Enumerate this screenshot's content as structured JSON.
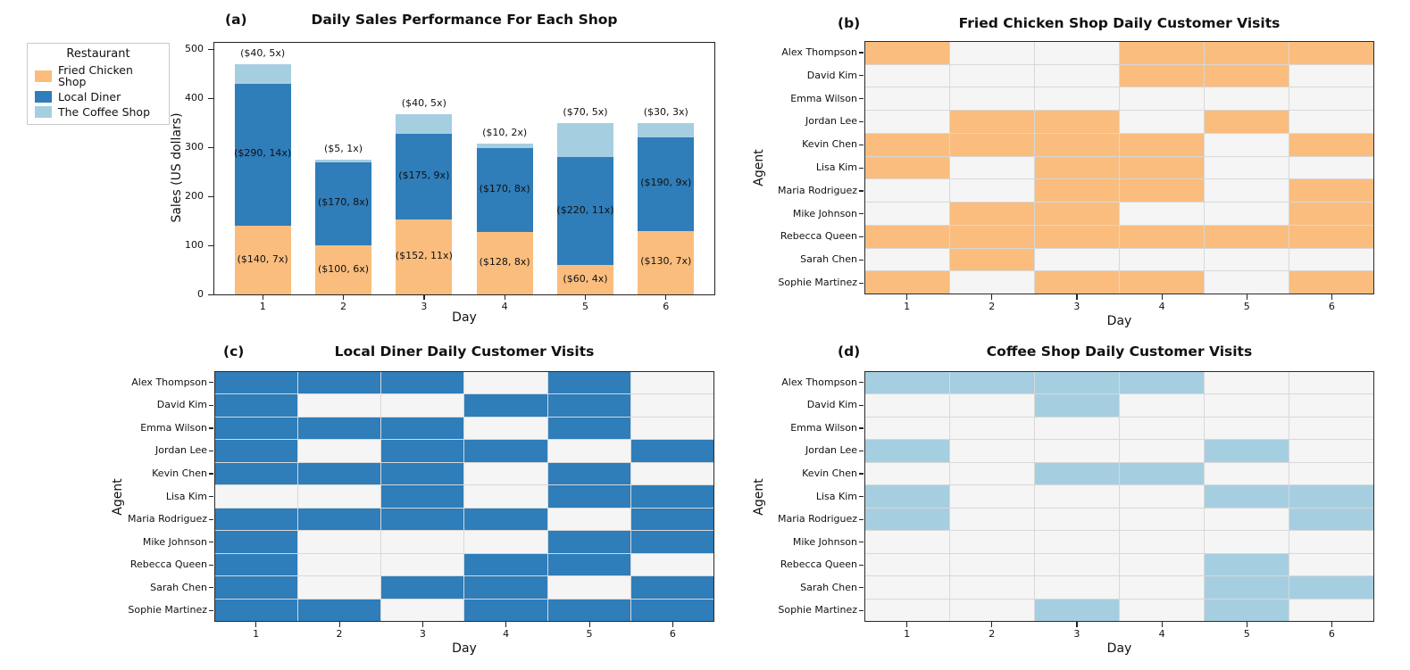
{
  "colors": {
    "fried": "#FABD7E",
    "diner": "#2F7DB9",
    "coffee": "#A6CEE1",
    "cell_off": "#F5F5F5",
    "grid_line": "#D8D8D8",
    "spine": "#222222"
  },
  "chart_data": [
    {
      "id": "a",
      "type": "bar",
      "stacked": true,
      "panel_tag": "(a)",
      "title": "Daily Sales Performance For Each Shop",
      "xlabel": "Day",
      "ylabel": "Sales (US dollars)",
      "categories": [
        "1",
        "2",
        "3",
        "4",
        "5",
        "6"
      ],
      "yticks": [
        0,
        100,
        200,
        300,
        400,
        500
      ],
      "ylim": [
        0,
        515
      ],
      "grid": false,
      "legend": {
        "title": "Restaurant",
        "position": "upper-left-outside",
        "entries": [
          {
            "label": "Fried Chicken Shop",
            "color": "fried"
          },
          {
            "label": "Local Diner",
            "color": "diner"
          },
          {
            "label": "The Coffee Shop",
            "color": "coffee"
          }
        ]
      },
      "series": [
        {
          "name": "Fried Chicken Shop",
          "color": "fried",
          "values": [
            140,
            100,
            152,
            128,
            60,
            130
          ],
          "labels": [
            "($140, 7x)",
            "($100, 6x)",
            "($152, 11x)",
            "($128, 8x)",
            "($60, 4x)",
            "($130, 7x)"
          ],
          "labels_above": false
        },
        {
          "name": "Local Diner",
          "color": "diner",
          "values": [
            290,
            170,
            175,
            170,
            220,
            190
          ],
          "labels": [
            "($290, 14x)",
            "($170, 8x)",
            "($175, 9x)",
            "($170, 8x)",
            "($220, 11x)",
            "($190, 9x)"
          ],
          "labels_above": false
        },
        {
          "name": "The Coffee Shop",
          "color": "coffee",
          "values": [
            40,
            5,
            40,
            10,
            70,
            30
          ],
          "labels": [
            "($40, 5x)",
            "($5, 1x)",
            "($40, 5x)",
            "($10, 2x)",
            "($70, 5x)",
            "($30, 3x)"
          ],
          "labels_above": true
        }
      ]
    },
    {
      "id": "b",
      "type": "heatmap",
      "panel_tag": "(b)",
      "title": "Fried Chicken Shop Daily Customer Visits",
      "xlabel": "Day",
      "ylabel": "Agent",
      "x": [
        "1",
        "2",
        "3",
        "4",
        "5",
        "6"
      ],
      "rows": [
        "Alex Thompson",
        "David Kim",
        "Emma Wilson",
        "Jordan Lee",
        "Kevin Chen",
        "Lisa Kim",
        "Maria Rodriguez",
        "Mike Johnson",
        "Rebecca Queen",
        "Sarah Chen",
        "Sophie Martinez"
      ],
      "on_color": "fried",
      "matrix": [
        [
          1,
          0,
          0,
          1,
          1,
          1
        ],
        [
          0,
          0,
          0,
          1,
          1,
          0
        ],
        [
          0,
          0,
          0,
          0,
          0,
          0
        ],
        [
          0,
          1,
          1,
          0,
          1,
          0
        ],
        [
          1,
          1,
          1,
          1,
          0,
          1
        ],
        [
          1,
          0,
          1,
          1,
          0,
          0
        ],
        [
          0,
          0,
          1,
          1,
          0,
          1
        ],
        [
          0,
          1,
          1,
          0,
          0,
          1
        ],
        [
          1,
          1,
          1,
          1,
          1,
          1
        ],
        [
          0,
          1,
          0,
          0,
          0,
          0
        ],
        [
          1,
          0,
          1,
          1,
          0,
          1
        ]
      ]
    },
    {
      "id": "c",
      "type": "heatmap",
      "panel_tag": "(c)",
      "title": "Local Diner Daily Customer Visits",
      "xlabel": "Day",
      "ylabel": "Agent",
      "x": [
        "1",
        "2",
        "3",
        "4",
        "5",
        "6"
      ],
      "rows": [
        "Alex Thompson",
        "David Kim",
        "Emma Wilson",
        "Jordan Lee",
        "Kevin Chen",
        "Lisa Kim",
        "Maria Rodriguez",
        "Mike Johnson",
        "Rebecca Queen",
        "Sarah Chen",
        "Sophie Martinez"
      ],
      "on_color": "diner",
      "matrix": [
        [
          1,
          1,
          1,
          0,
          1,
          0
        ],
        [
          1,
          0,
          0,
          1,
          1,
          0
        ],
        [
          1,
          1,
          1,
          0,
          1,
          0
        ],
        [
          1,
          0,
          1,
          1,
          0,
          1
        ],
        [
          1,
          1,
          1,
          0,
          1,
          0
        ],
        [
          0,
          0,
          1,
          0,
          1,
          1
        ],
        [
          1,
          1,
          1,
          1,
          0,
          1
        ],
        [
          1,
          0,
          0,
          0,
          1,
          1
        ],
        [
          1,
          0,
          0,
          1,
          1,
          0
        ],
        [
          1,
          0,
          1,
          1,
          0,
          1
        ],
        [
          1,
          1,
          0,
          1,
          1,
          1
        ]
      ]
    },
    {
      "id": "d",
      "type": "heatmap",
      "panel_tag": "(d)",
      "title": "Coffee Shop Daily Customer Visits",
      "xlabel": "Day",
      "ylabel": "Agent",
      "x": [
        "1",
        "2",
        "3",
        "4",
        "5",
        "6"
      ],
      "rows": [
        "Alex Thompson",
        "David Kim",
        "Emma Wilson",
        "Jordan Lee",
        "Kevin Chen",
        "Lisa Kim",
        "Maria Rodriguez",
        "Mike Johnson",
        "Rebecca Queen",
        "Sarah Chen",
        "Sophie Martinez"
      ],
      "on_color": "coffee",
      "matrix": [
        [
          1,
          1,
          1,
          1,
          0,
          0
        ],
        [
          0,
          0,
          1,
          0,
          0,
          0
        ],
        [
          0,
          0,
          0,
          0,
          0,
          0
        ],
        [
          1,
          0,
          0,
          0,
          1,
          0
        ],
        [
          0,
          0,
          1,
          1,
          0,
          0
        ],
        [
          1,
          0,
          0,
          0,
          1,
          1
        ],
        [
          1,
          0,
          0,
          0,
          0,
          1
        ],
        [
          0,
          0,
          0,
          0,
          0,
          0
        ],
        [
          0,
          0,
          0,
          0,
          1,
          0
        ],
        [
          0,
          0,
          0,
          0,
          1,
          1
        ],
        [
          0,
          0,
          1,
          0,
          1,
          0
        ]
      ]
    }
  ]
}
